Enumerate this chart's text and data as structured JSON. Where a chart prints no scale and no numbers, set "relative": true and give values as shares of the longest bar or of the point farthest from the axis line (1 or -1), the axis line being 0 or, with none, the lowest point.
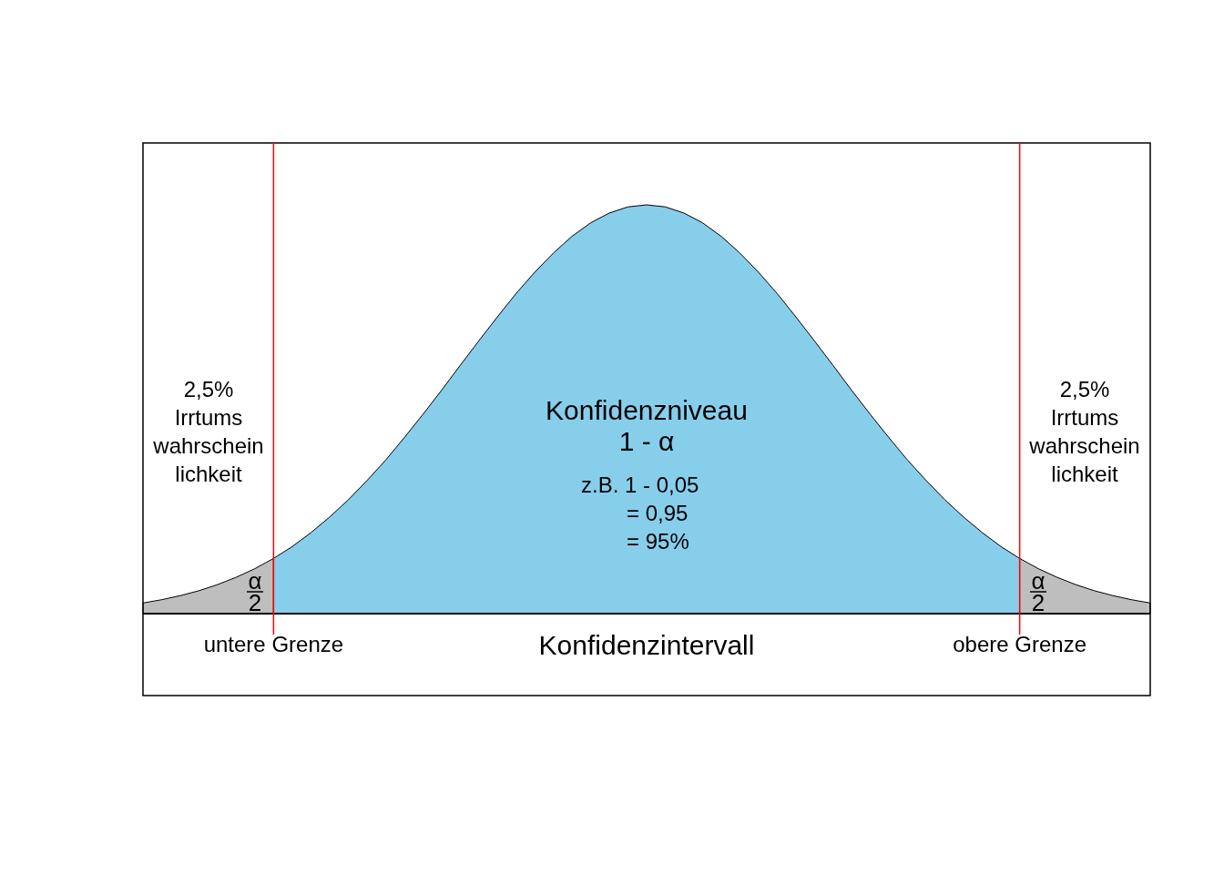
{
  "chart_data": {
    "type": "area",
    "relative": true,
    "xlabel": "Konfidenzintervall",
    "categories": [
      null,
      null,
      null,
      null,
      null,
      null,
      null,
      null,
      null,
      null,
      null,
      null,
      null,
      null,
      null,
      null,
      null,
      null,
      null,
      null,
      null,
      null,
      null,
      null,
      null,
      null,
      null,
      null,
      null,
      null,
      null,
      null,
      null,
      null,
      null,
      null,
      null,
      null,
      null,
      null,
      null,
      null,
      null,
      null,
      null,
      null,
      null,
      null,
      null,
      null,
      null,
      null,
      null,
      null,
      null
    ],
    "series": [
      {
        "color": "#bebebe",
        "values": [
          0.026,
          0.034,
          0.044,
          0.056,
          0.071,
          0.089,
          0.11,
          0.135,
          null,
          null,
          null,
          null,
          null,
          null,
          null,
          null,
          null,
          null,
          null,
          null,
          null,
          null,
          null,
          null,
          null,
          null,
          null,
          null,
          null,
          null,
          null,
          null,
          null,
          null,
          null,
          null,
          null,
          null,
          null,
          null,
          null,
          null,
          null,
          null,
          null,
          null,
          null,
          null,
          null,
          null,
          null,
          null,
          null,
          null,
          null
        ]
      },
      {
        "color": "#87ceeb",
        "values": [
          null,
          null,
          null,
          null,
          null,
          null,
          null,
          0.135,
          0.164,
          0.198,
          0.236,
          0.278,
          0.325,
          0.375,
          0.43,
          0.487,
          0.546,
          0.607,
          0.667,
          0.726,
          0.783,
          0.835,
          0.882,
          0.923,
          0.956,
          0.98,
          0.995,
          1,
          0.995,
          0.98,
          0.956,
          0.923,
          0.882,
          0.835,
          0.783,
          0.726,
          0.667,
          0.607,
          0.546,
          0.487,
          0.43,
          0.375,
          0.325,
          0.278,
          0.236,
          0.198,
          0.164,
          0.135,
          null,
          null,
          null,
          null,
          null,
          null,
          null
        ]
      },
      {
        "color": "#bebebe",
        "values": [
          null,
          null,
          null,
          null,
          null,
          null,
          null,
          null,
          null,
          null,
          null,
          null,
          null,
          null,
          null,
          null,
          null,
          null,
          null,
          null,
          null,
          null,
          null,
          null,
          null,
          null,
          null,
          null,
          null,
          null,
          null,
          null,
          null,
          null,
          null,
          null,
          null,
          null,
          null,
          null,
          null,
          null,
          null,
          null,
          null,
          null,
          null,
          0.135,
          0.11,
          0.089,
          0.071,
          0.056,
          0.044,
          0.034,
          0.026
        ]
      }
    ],
    "annotations": [
      "2,5%\nIrrtums\nwahrschein\nlichkeit",
      "2,5%\nIrrtums\nwahrschein\nlichkeit",
      "Konfidenzniveau\n1 - α",
      "z.B. 1 - 0,05\n= 0,95\n= 95%",
      "α\n2",
      "α\n2",
      "untere Grenze",
      "obere Grenze"
    ]
  }
}
